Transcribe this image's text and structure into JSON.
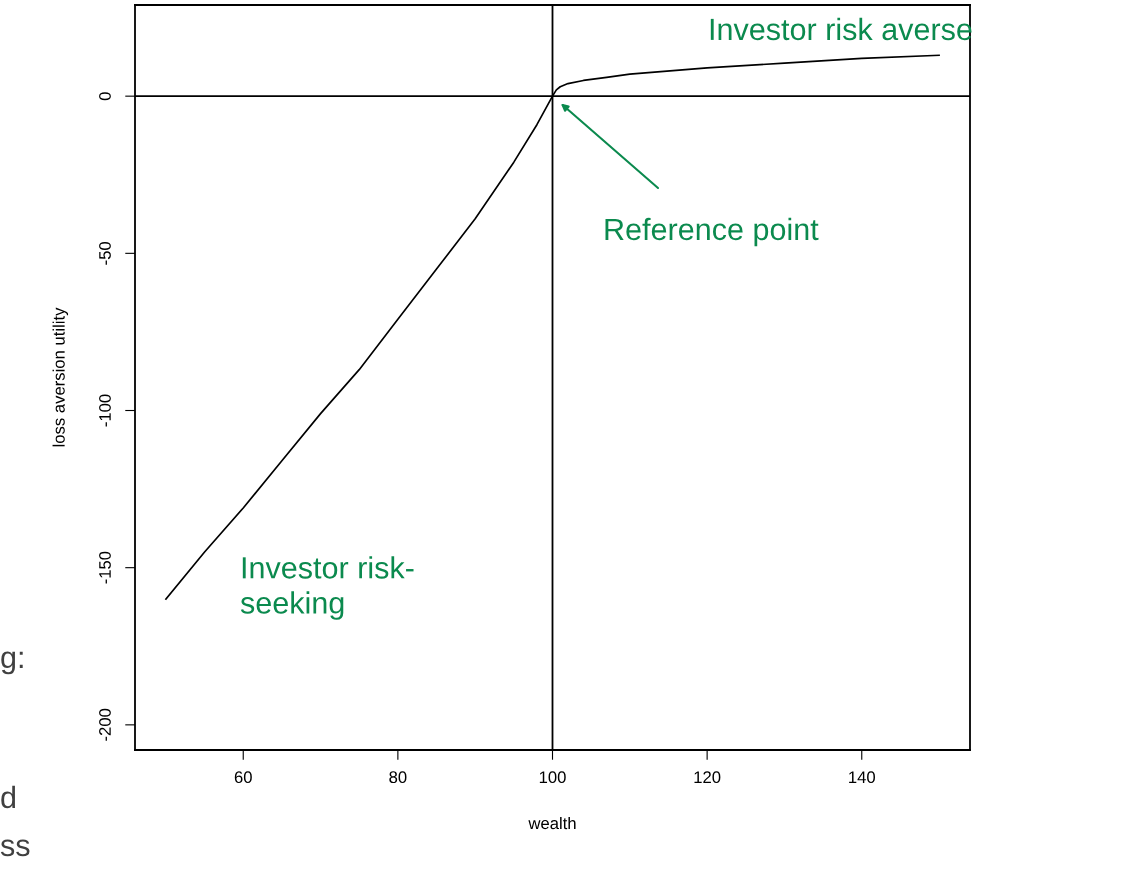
{
  "chart_data": {
    "type": "line",
    "xlabel": "wealth",
    "ylabel": "loss aversion utility",
    "x": [
      50,
      55,
      60,
      65,
      70,
      75,
      80,
      85,
      90,
      95,
      98,
      100,
      100.5,
      101,
      102,
      104,
      107,
      110,
      120,
      130,
      140,
      150
    ],
    "series": [
      {
        "color": "#000000",
        "values": [
          -160,
          -145,
          -131,
          -116,
          -101,
          -87,
          -71,
          -55,
          -39,
          -21,
          -9,
          0,
          2,
          3,
          4,
          5,
          6,
          7,
          9,
          10.5,
          12,
          13
        ]
      }
    ],
    "xlim": [
      46,
      154
    ],
    "ylim": [
      -208,
      29
    ],
    "xticks": [
      60,
      80,
      100,
      120,
      140
    ],
    "yticks": [
      -200,
      -150,
      -100,
      -50,
      0
    ],
    "ref_lines": [
      {
        "axis": "x",
        "value": 100,
        "color": "#000000"
      },
      {
        "axis": "y",
        "value": 0,
        "color": "#000000"
      }
    ],
    "annotations": [
      "Reference point",
      "Investor risk averse",
      "Investor risk-\nseeking",
      "g:",
      "d",
      "ss"
    ],
    "grid": false,
    "marker": "none",
    "line_style": "solid"
  }
}
